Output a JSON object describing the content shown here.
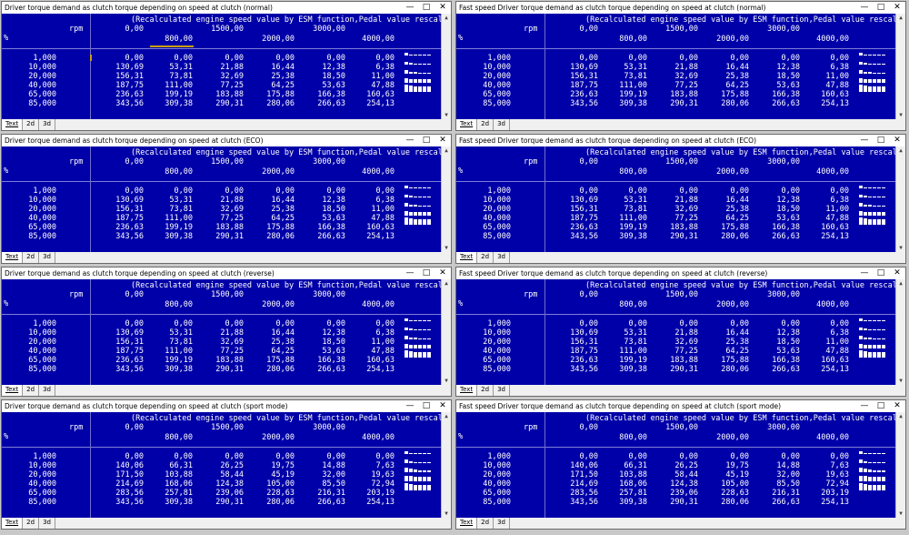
{
  "header_line": "(Recalculated engine speed value by ESM function,Pedal value rescaled.)/Nm",
  "axis": {
    "row_label": "rpm",
    "percent_label": "%",
    "upper": [
      "0,00",
      "1500,00",
      "3000,00"
    ],
    "lower": [
      "800,00",
      "2000,00",
      "4000,00"
    ]
  },
  "tabs": [
    "Text",
    "2d",
    "3d"
  ],
  "controls": {
    "minimize": "—",
    "maximize": "□",
    "close": "✕"
  },
  "table_standard": {
    "rows": [
      "1,000",
      "10,000",
      "20,000",
      "40,000",
      "65,000",
      "85,000"
    ],
    "cells": [
      [
        "0,00",
        "0,00",
        "0,00",
        "0,00",
        "0,00",
        "0,00"
      ],
      [
        "130,69",
        "53,31",
        "21,88",
        "16,44",
        "12,38",
        "6,38"
      ],
      [
        "156,31",
        "73,81",
        "32,69",
        "25,38",
        "18,50",
        "11,00"
      ],
      [
        "187,75",
        "111,00",
        "77,25",
        "64,25",
        "53,63",
        "47,88"
      ],
      [
        "236,63",
        "199,19",
        "183,88",
        "175,88",
        "166,38",
        "160,63"
      ],
      [
        "343,56",
        "309,38",
        "290,31",
        "280,06",
        "266,63",
        "254,13"
      ]
    ]
  },
  "table_sport": {
    "rows": [
      "1,000",
      "10,000",
      "20,000",
      "40,000",
      "65,000",
      "85,000"
    ],
    "cells": [
      [
        "0,00",
        "0,00",
        "0,00",
        "0,00",
        "0,00",
        "0,00"
      ],
      [
        "140,06",
        "66,31",
        "26,25",
        "19,75",
        "14,88",
        "7,63"
      ],
      [
        "171,50",
        "103,88",
        "58,44",
        "45,19",
        "32,00",
        "19,63"
      ],
      [
        "214,69",
        "168,06",
        "124,38",
        "105,00",
        "85,50",
        "72,94"
      ],
      [
        "283,56",
        "257,81",
        "239,06",
        "228,63",
        "216,31",
        "203,19"
      ],
      [
        "343,56",
        "309,38",
        "290,31",
        "280,06",
        "266,63",
        "254,13"
      ]
    ]
  },
  "windows": [
    {
      "title": "Driver torque demand as clutch torque depending on speed at clutch (normal)",
      "table": "standard",
      "cursor": true
    },
    {
      "title": "Fast speed Driver torque demand as clutch torque depending on speed at clutch (normal)",
      "table": "standard",
      "cursor": false
    },
    {
      "title": "Driver torque demand as clutch torque depending on speed at clutch (ECO)",
      "table": "standard",
      "cursor": false
    },
    {
      "title": "Fast speed Driver torque demand as clutch torque depending on speed at clutch (ECO)",
      "table": "standard",
      "cursor": false
    },
    {
      "title": "Driver torque demand as clutch torque depending on speed at clutch (reverse)",
      "table": "standard",
      "cursor": false
    },
    {
      "title": "Fast speed Driver torque demand as clutch torque depending on speed at clutch (reverse)",
      "table": "standard",
      "cursor": false
    },
    {
      "title": "Driver torque demand as clutch torque depending on speed at clutch (sport mode)",
      "table": "sport",
      "cursor": false
    },
    {
      "title": "Fast speed Driver torque demand as clutch torque depending on speed at clutch (sport mode)",
      "table": "sport",
      "cursor": false
    }
  ],
  "colors": {
    "panel_bg": "#0000a8",
    "text": "#ffffff",
    "cursor": "#c8a000"
  }
}
